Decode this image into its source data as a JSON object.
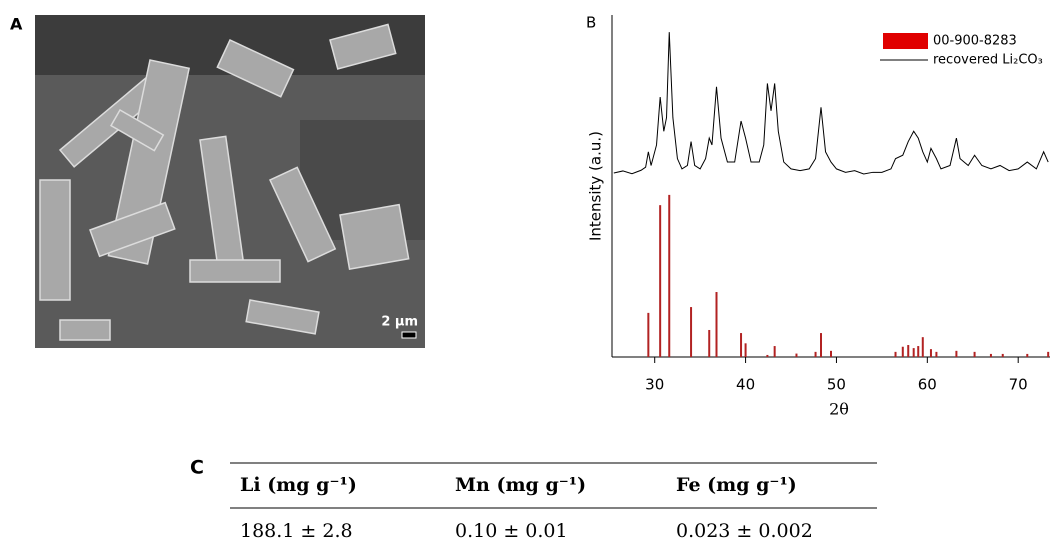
{
  "panel_labels": {
    "a": "A",
    "b": "B",
    "c": "C"
  },
  "sem_image": {
    "scale_bar": "2 μm"
  },
  "chart_data": {
    "type": "xrd",
    "xlabel": "2θ",
    "ylabel": "Intensity (a.u.)",
    "xlim": [
      25.3,
      73.5
    ],
    "xticks": [
      30,
      40,
      50,
      60,
      70
    ],
    "ylim": [
      0,
      100
    ],
    "legend": "top-right",
    "series": [
      {
        "name": "00-900-8283",
        "color": "#e00000",
        "bar_color": "#b22222",
        "type": "bar",
        "x": [
          29.3,
          30.6,
          31.6,
          34.0,
          36.0,
          36.8,
          39.5,
          40.0,
          42.4,
          43.2,
          45.6,
          47.7,
          48.3,
          49.4,
          56.5,
          57.3,
          57.9,
          58.5,
          59.0,
          59.5,
          60.4,
          61.0,
          63.2,
          65.2,
          67.0,
          68.3,
          71.0,
          73.3
        ],
        "values": [
          12.9,
          44.4,
          47.4,
          14.6,
          7.9,
          19,
          7,
          4,
          0.6,
          3.2,
          1,
          1.5,
          7,
          1.8,
          1.5,
          3,
          3.5,
          2.6,
          3.2,
          5.8,
          2.3,
          1.5,
          1.8,
          1.5,
          0.9,
          0.9,
          0.9,
          1.5
        ]
      },
      {
        "name": "recovered Li₂CO₃",
        "color": "#000000",
        "type": "line",
        "x": [
          25.5,
          26.5,
          27.5,
          28.5,
          29.0,
          29.3,
          29.6,
          30.2,
          30.6,
          31.0,
          31.3,
          31.6,
          32.0,
          32.5,
          33.0,
          33.6,
          34.0,
          34.4,
          35.0,
          35.6,
          36.0,
          36.3,
          36.8,
          37.3,
          38.0,
          38.8,
          39.5,
          40.0,
          40.6,
          41.5,
          42.0,
          42.4,
          42.8,
          43.2,
          43.6,
          44.2,
          45.0,
          46.0,
          47.0,
          47.7,
          48.3,
          48.8,
          49.4,
          50.0,
          51.0,
          52.0,
          53.0,
          54.0,
          55.0,
          56.0,
          56.5,
          57.3,
          57.9,
          58.5,
          59.0,
          59.5,
          60.0,
          60.4,
          61.0,
          61.5,
          62.5,
          63.2,
          63.6,
          64.5,
          65.2,
          66.0,
          67.0,
          68.0,
          69.0,
          70.0,
          71.0,
          72.0,
          72.8,
          73.3
        ],
        "values": [
          53.8,
          54.4,
          53.6,
          54.6,
          55.5,
          60,
          56,
          62,
          76,
          66,
          70,
          95,
          70,
          58,
          55,
          56,
          63,
          56,
          55,
          58,
          64,
          62,
          79,
          64,
          57,
          57,
          69,
          64,
          57,
          57,
          62,
          80,
          72,
          80,
          66,
          57,
          55,
          54.5,
          55,
          58,
          73,
          60,
          57,
          55,
          54,
          54.5,
          53.5,
          54,
          54,
          55,
          58,
          59,
          63,
          66,
          64,
          60,
          57,
          61,
          58,
          55,
          56,
          64,
          58,
          56,
          59,
          56,
          55,
          56,
          54.5,
          55,
          57,
          55,
          60,
          57
        ]
      }
    ]
  },
  "table": {
    "header": [
      "Li (mg g⁻¹)",
      "Mn (mg g⁻¹)",
      "Fe (mg g⁻¹)"
    ],
    "rows": [
      [
        "188.1 ± 2.8",
        "0.10 ± 0.01",
        "0.023 ± 0.002"
      ]
    ]
  }
}
